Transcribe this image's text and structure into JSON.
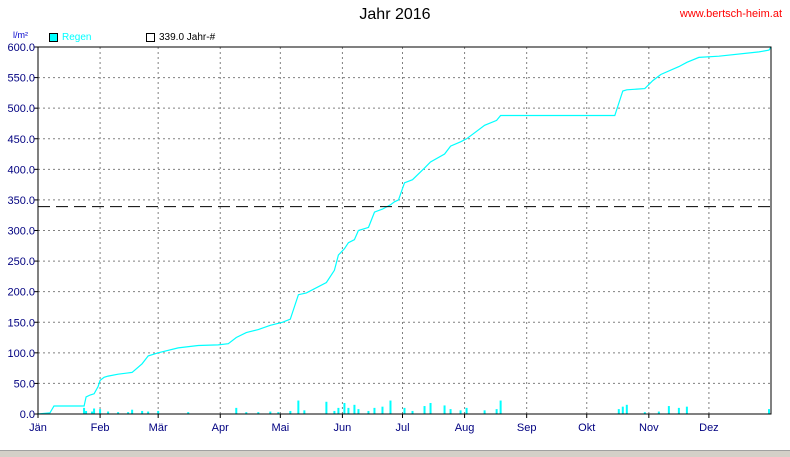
{
  "header": {
    "title": "Jahr 2016",
    "site": "www.bertsch-heim.at",
    "unit": "l/m²"
  },
  "legend": {
    "series1": "Regen",
    "series2": "339.0 Jahr-#"
  },
  "colors": {
    "series": "#00ffff",
    "reference": "#000000",
    "grid": "#808080",
    "axis_text": "#000080",
    "site": "#ff0000"
  },
  "chart_data": {
    "type": "line",
    "title": "Jahr 2016",
    "ylabel": "l/m²",
    "ylim": [
      0,
      600
    ],
    "yticks": [
      "0.0",
      "50.0",
      "100.0",
      "150.0",
      "200.0",
      "250.0",
      "300.0",
      "350.0",
      "400.0",
      "450.0",
      "500.0",
      "550.0",
      "600.0"
    ],
    "xlim": [
      0,
      366
    ],
    "months": [
      "Jän",
      "Feb",
      "Mär",
      "Apr",
      "Mai",
      "Jun",
      "Jul",
      "Aug",
      "Sep",
      "Okt",
      "Nov",
      "Dez"
    ],
    "month_start_days": [
      0,
      31,
      60,
      91,
      121,
      152,
      182,
      213,
      244,
      274,
      305,
      335
    ],
    "grid": true,
    "reference_line": {
      "name": "339.0 Jahr-#",
      "value": 339.0,
      "style": "dashed"
    },
    "series": [
      {
        "name": "Regen",
        "kind": "cumulative",
        "day": [
          0,
          6,
          8,
          23,
          24,
          26,
          28,
          30,
          31,
          33,
          35,
          40,
          47,
          52,
          55,
          60,
          70,
          80,
          90,
          95,
          99,
          104,
          110,
          116,
          122,
          126,
          130,
          134,
          144,
          148,
          150,
          153,
          155,
          158,
          160,
          165,
          168,
          172,
          176,
          178,
          180,
          183,
          187,
          193,
          196,
          203,
          206,
          211,
          214,
          223,
          229,
          231,
          244,
          256,
          280,
          288,
          292,
          294,
          303,
          307,
          311,
          320,
          324,
          330,
          340,
          360,
          365,
          366
        ],
        "cum": [
          0,
          2,
          13,
          13,
          28,
          31,
          33,
          45,
          55,
          60,
          62,
          65,
          68,
          82,
          95,
          100,
          108,
          112,
          113,
          115,
          125,
          133,
          138,
          145,
          150,
          155,
          195,
          198,
          215,
          235,
          260,
          270,
          280,
          285,
          300,
          305,
          330,
          335,
          342,
          347,
          350,
          378,
          383,
          402,
          412,
          425,
          438,
          445,
          450,
          472,
          480,
          488,
          488,
          488,
          488,
          488,
          528,
          530,
          532,
          545,
          555,
          568,
          575,
          583,
          585,
          592,
          595,
          600
        ]
      },
      {
        "name": "Regen (Tageswerte)",
        "kind": "daily_bars",
        "day": [
          23,
          24,
          27,
          28,
          31,
          35,
          40,
          45,
          47,
          52,
          55,
          60,
          75,
          99,
          104,
          110,
          116,
          120,
          126,
          130,
          133,
          144,
          148,
          150,
          153,
          155,
          158,
          160,
          165,
          168,
          172,
          176,
          183,
          187,
          193,
          196,
          203,
          206,
          211,
          214,
          223,
          229,
          231,
          290,
          292,
          294,
          303,
          310,
          315,
          320,
          324,
          365
        ],
        "value": [
          10,
          5,
          4,
          9,
          8,
          4,
          3,
          3,
          7,
          5,
          4,
          5,
          3,
          10,
          3,
          3,
          4,
          3,
          5,
          22,
          6,
          20,
          5,
          10,
          18,
          10,
          15,
          8,
          5,
          10,
          12,
          22,
          10,
          5,
          13,
          18,
          14,
          8,
          6,
          10,
          6,
          8,
          22,
          8,
          12,
          15,
          3,
          4,
          13,
          10,
          12,
          8
        ]
      }
    ]
  }
}
